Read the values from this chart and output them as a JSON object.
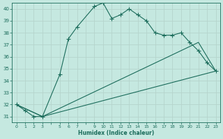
{
  "xlabel": "Humidex (Indice chaleur)",
  "background_color": "#c5e8e0",
  "grid_color": "#b8d8d0",
  "line_color": "#1a6b5a",
  "ylim": [
    30.5,
    40.5
  ],
  "xlim": [
    -0.5,
    23.5
  ],
  "yticks": [
    31,
    32,
    33,
    34,
    35,
    36,
    37,
    38,
    39,
    40
  ],
  "xtick_positions": [
    0,
    1,
    2,
    3,
    4,
    5,
    6,
    7,
    8,
    9,
    10,
    11,
    12,
    13,
    14,
    15,
    16,
    17,
    18,
    19,
    20,
    21,
    22,
    23
  ],
  "xtick_labels": [
    "0",
    "1",
    "2",
    "3",
    "",
    "5",
    "6",
    "7",
    "",
    "9",
    "10",
    "11",
    "12",
    "13",
    "14",
    "15",
    "16",
    "17",
    "18",
    "19",
    "20",
    "21",
    "22",
    "23"
  ],
  "line1_x": [
    0,
    1,
    2,
    3,
    5,
    6,
    7,
    9,
    10,
    11,
    12,
    13,
    14,
    15,
    16,
    17,
    18,
    19,
    20,
    21,
    22,
    23
  ],
  "line1_y": [
    32.0,
    31.5,
    31.0,
    31.0,
    34.5,
    37.5,
    38.5,
    40.2,
    40.5,
    39.2,
    39.5,
    40.0,
    39.5,
    39.0,
    38.0,
    37.8,
    37.8,
    38.0,
    37.2,
    36.5,
    35.5,
    34.8
  ],
  "line2_x": [
    0,
    3,
    21,
    23
  ],
  "line2_y": [
    32.0,
    31.0,
    37.2,
    34.8
  ],
  "line3_x": [
    0,
    3,
    23
  ],
  "line3_y": [
    32.0,
    31.0,
    34.8
  ]
}
